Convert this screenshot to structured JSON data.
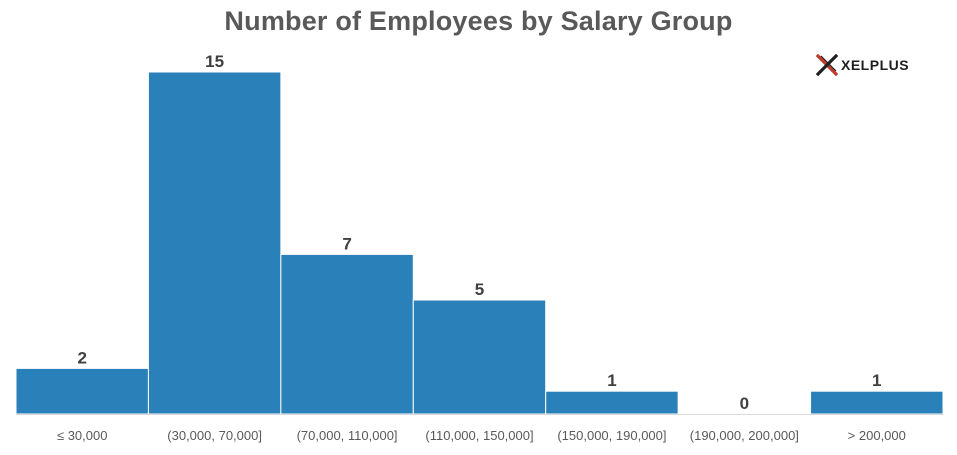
{
  "chart_data": {
    "type": "bar",
    "title": "Number of Employees by Salary Group",
    "categories": [
      "≤ 30,000",
      "(30,000, 70,000]",
      "(70,000, 110,000]",
      "(110,000, 150,000]",
      "(150,000, 190,000]",
      "(190,000, 200,000]",
      "> 200,000"
    ],
    "values": [
      2,
      15,
      7,
      5,
      1,
      0,
      1
    ],
    "xlabel": "",
    "ylabel": "",
    "ylim": [
      0,
      15
    ],
    "grid": false,
    "legend": "none",
    "bar_color": "#2a80b9"
  },
  "branding": {
    "logo_text": "XELPLUS",
    "logo_icon": "x-logo-icon"
  }
}
